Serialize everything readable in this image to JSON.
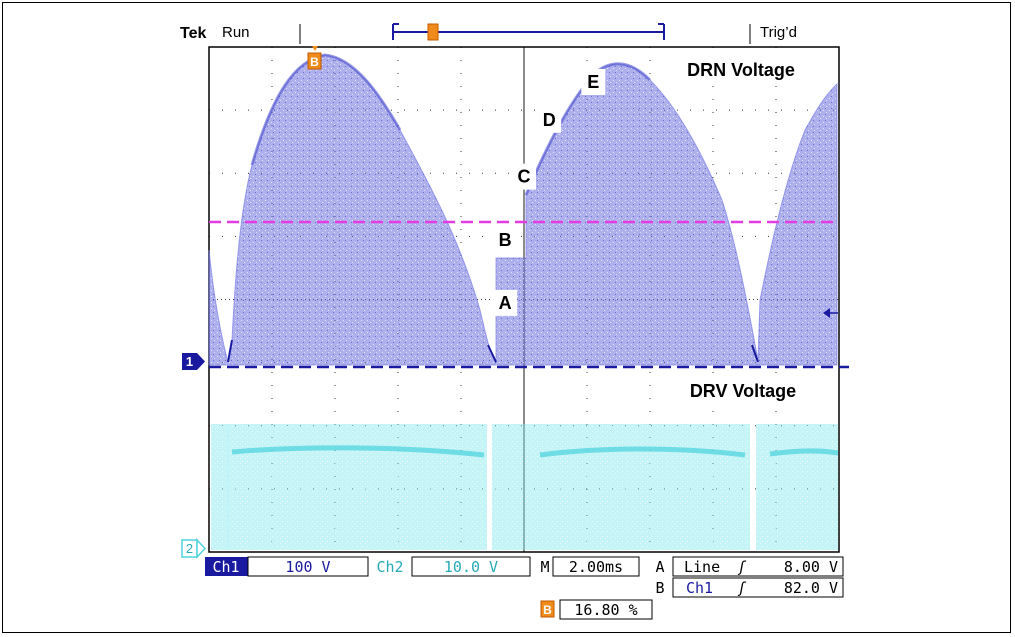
{
  "header": {
    "brand": "Tek",
    "status": "Run",
    "trigger_status": "Trig’d"
  },
  "trace_labels": {
    "drn": "DRN Voltage",
    "drv": "DRV Voltage",
    "annotations": [
      "A",
      "B",
      "C",
      "D",
      "E"
    ]
  },
  "markers": {
    "ch1": "1",
    "ch2": "2",
    "b_marker": "B"
  },
  "readout": {
    "ch1_label": "Ch1",
    "ch1_scale": "100 V",
    "ch2_label": "Ch2",
    "ch2_scale": "10.0 V",
    "time_label": "M",
    "time_scale": "2.00ms",
    "trig_a_label": "A",
    "trig_a_source": "Line",
    "trig_a_slope": "ʃ",
    "trig_a_level": "8.00 V",
    "trig_b_label": "B",
    "trig_b_source": "Ch1",
    "trig_b_slope": "ʃ",
    "trig_b_level": "82.0 V",
    "b_position": "16.80 %"
  },
  "colors": {
    "ch1": "#6b6fe0",
    "ch1_dark": "#1a1aa0",
    "ch2": "#7fe6ee",
    "magenta": "#e23ce2",
    "orange": "#f08a1a",
    "grid": "#000000"
  },
  "chart_data": {
    "type": "line",
    "x_divisions": 10,
    "y_divisions": 8,
    "time_per_div_ms": 2.0,
    "series": [
      {
        "name": "DRN Voltage",
        "channel": "Ch1",
        "volts_per_div": 100,
        "peaks_div": [
          {
            "x": 1.6,
            "y": 5.2
          },
          {
            "x": 6.1,
            "y": 4.8
          },
          {
            "x": 9.9,
            "y": 4.4
          }
        ],
        "valleys_div": [
          0.3,
          4.5,
          8.5
        ]
      },
      {
        "name": "DRV Voltage",
        "channel": "Ch2",
        "volts_per_div": 10.0,
        "level_div": 1.9
      }
    ],
    "annotations": [
      {
        "label": "A",
        "x_div": 4.7,
        "y_div": 1.0
      },
      {
        "label": "B",
        "x_div": 4.7,
        "y_div": 2.0
      },
      {
        "label": "C",
        "x_div": 5.0,
        "y_div": 3.0
      },
      {
        "label": "D",
        "x_div": 5.4,
        "y_div": 3.9
      },
      {
        "label": "E",
        "x_div": 6.1,
        "y_div": 4.5
      }
    ]
  }
}
